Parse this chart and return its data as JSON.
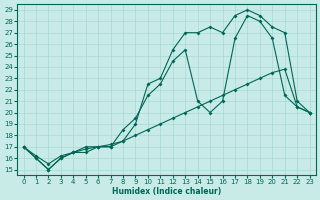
{
  "xlabel": "Humidex (Indice chaleur)",
  "bg_color": "#c8ebe8",
  "grid_color": "#a8d8d4",
  "line_color": "#006655",
  "xlim": [
    -0.5,
    23.5
  ],
  "ylim": [
    14.5,
    29.5
  ],
  "xticks": [
    0,
    1,
    2,
    3,
    4,
    5,
    6,
    7,
    8,
    9,
    10,
    11,
    12,
    13,
    14,
    15,
    16,
    17,
    18,
    19,
    20,
    21,
    22,
    23
  ],
  "yticks": [
    15,
    16,
    17,
    18,
    19,
    20,
    21,
    22,
    23,
    24,
    25,
    26,
    27,
    28,
    29
  ],
  "line1_x": [
    0,
    1,
    2,
    3,
    4,
    5,
    6,
    7,
    8,
    9,
    10,
    11,
    12,
    13,
    14,
    15,
    16,
    17,
    18,
    19,
    20,
    21,
    22,
    23
  ],
  "line1_y": [
    17.0,
    16.0,
    15.0,
    16.0,
    16.5,
    16.5,
    17.0,
    17.0,
    17.5,
    19.0,
    22.5,
    23.0,
    25.5,
    27.0,
    27.0,
    27.5,
    27.0,
    28.5,
    29.0,
    28.5,
    27.5,
    27.0,
    21.0,
    20.0
  ],
  "line2_x": [
    0,
    1,
    2,
    3,
    4,
    5,
    6,
    7,
    8,
    9,
    10,
    11,
    12,
    13,
    14,
    15,
    16,
    17,
    18,
    19,
    20,
    21,
    22,
    23
  ],
  "line2_y": [
    17.0,
    16.0,
    15.0,
    16.0,
    16.5,
    17.0,
    17.0,
    17.0,
    18.5,
    19.5,
    21.5,
    22.5,
    24.5,
    25.5,
    21.0,
    20.0,
    21.0,
    26.5,
    28.5,
    28.0,
    26.5,
    21.5,
    20.5,
    20.0
  ],
  "line3_x": [
    0,
    1,
    2,
    3,
    4,
    5,
    6,
    7,
    8,
    9,
    10,
    11,
    12,
    13,
    14,
    15,
    16,
    17,
    18,
    19,
    20,
    21,
    22,
    23
  ],
  "line3_y": [
    17.0,
    16.2,
    15.5,
    16.2,
    16.5,
    16.8,
    17.0,
    17.2,
    17.5,
    18.0,
    18.5,
    19.0,
    19.5,
    20.0,
    20.5,
    21.0,
    21.5,
    22.0,
    22.5,
    23.0,
    23.5,
    23.8,
    20.5,
    20.0
  ]
}
